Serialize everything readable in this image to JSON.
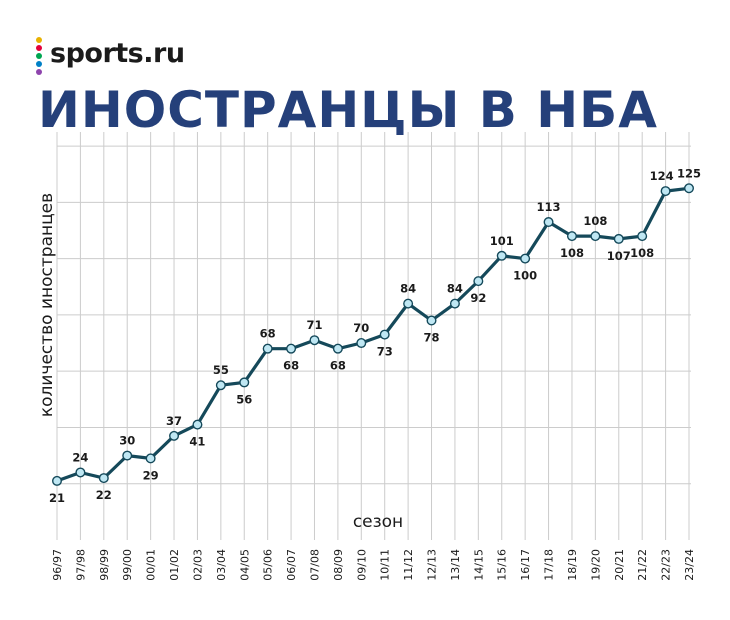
{
  "brand": {
    "name": "sports.ru",
    "dot_colors": [
      "#e8b100",
      "#e4003a",
      "#00a651",
      "#0080c6",
      "#8e44ad"
    ]
  },
  "colors": {
    "title": "#25407a",
    "line": "#15495a",
    "marker_fill": "#bfe7f3",
    "grid": "#cccccc"
  },
  "chart_data": {
    "type": "line",
    "title": "ИНОСТРАНЦЫ В НБА",
    "xlabel": "сезон",
    "ylabel": "количество иностранцев",
    "categories": [
      "96/97",
      "97/98",
      "98/99",
      "99/00",
      "00/01",
      "01/02",
      "02/03",
      "03/04",
      "04/05",
      "05/06",
      "06/07",
      "07/08",
      "08/09",
      "09/10",
      "10/11",
      "11/12",
      "12/13",
      "13/14",
      "14/15",
      "15/16",
      "16/17",
      "17/18",
      "18/19",
      "19/20",
      "20/21",
      "21/22",
      "22/23",
      "23/24"
    ],
    "values": [
      21,
      24,
      22,
      30,
      29,
      37,
      41,
      55,
      56,
      68,
      68,
      71,
      68,
      70,
      73,
      84,
      78,
      84,
      92,
      101,
      100,
      113,
      108,
      108,
      107,
      108,
      124,
      125
    ],
    "label_position": [
      "below",
      "above",
      "below",
      "above",
      "below",
      "above",
      "below",
      "above",
      "below",
      "above",
      "below",
      "above",
      "below",
      "above",
      "below",
      "above",
      "below",
      "above",
      "below",
      "above",
      "below",
      "above",
      "below",
      "above",
      "below",
      "below",
      "above",
      "above"
    ],
    "ylim": [
      0,
      145
    ],
    "grid": "horizontal and vertical",
    "legend": "none"
  }
}
